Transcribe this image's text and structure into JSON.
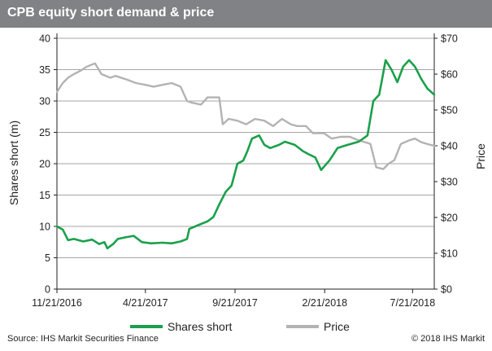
{
  "chart_data": {
    "type": "line",
    "title": "CPB equity short demand & price",
    "ylabel": "Shares short (m)",
    "y2label": "Price",
    "ylim": [
      0,
      40
    ],
    "y2lim": [
      0,
      70
    ],
    "yticks": [
      "0",
      "5",
      "10",
      "15",
      "20",
      "25",
      "30",
      "35",
      "40"
    ],
    "y2ticks": [
      "$0",
      "$10",
      "$20",
      "$30",
      "$40",
      "$50",
      "$60",
      "$70"
    ],
    "xticks": [
      "11/21/2016",
      "4/21/2017",
      "9/21/2017",
      "2/21/2018",
      "7/21/2018"
    ],
    "xlim": [
      "2016-11-21",
      "2018-08-27"
    ],
    "grid": true,
    "legend_position": "bottom",
    "colors": {
      "shares_short": "#1aa04b",
      "price": "#b3b3b3"
    },
    "series": [
      {
        "name": "Shares short",
        "axis": "left",
        "x": [
          "2016-11-21",
          "2016-12-01",
          "2016-12-10",
          "2016-12-20",
          "2017-01-05",
          "2017-01-20",
          "2017-02-01",
          "2017-02-10",
          "2017-02-15",
          "2017-02-25",
          "2017-03-05",
          "2017-03-20",
          "2017-04-01",
          "2017-04-15",
          "2017-05-01",
          "2017-05-20",
          "2017-06-05",
          "2017-06-20",
          "2017-07-01",
          "2017-07-05",
          "2017-07-20",
          "2017-08-05",
          "2017-08-15",
          "2017-08-25",
          "2017-09-05",
          "2017-09-15",
          "2017-09-25",
          "2017-10-05",
          "2017-10-12",
          "2017-10-20",
          "2017-11-01",
          "2017-11-10",
          "2017-11-20",
          "2017-12-05",
          "2017-12-15",
          "2018-01-01",
          "2018-01-15",
          "2018-01-25",
          "2018-02-05",
          "2018-02-15",
          "2018-03-01",
          "2018-03-15",
          "2018-04-01",
          "2018-04-20",
          "2018-05-05",
          "2018-05-15",
          "2018-05-25",
          "2018-06-05",
          "2018-06-15",
          "2018-06-25",
          "2018-07-05",
          "2018-07-15",
          "2018-07-25",
          "2018-08-05",
          "2018-08-15",
          "2018-08-27"
        ],
        "values": [
          10,
          9.5,
          7.8,
          8.0,
          7.6,
          7.9,
          7.2,
          7.5,
          6.5,
          7.2,
          8.0,
          8.3,
          8.5,
          7.5,
          7.3,
          7.4,
          7.3,
          7.6,
          8.0,
          9.6,
          10.2,
          10.8,
          11.5,
          13.5,
          15.5,
          16.5,
          20.0,
          20.5,
          22.0,
          24.0,
          24.5,
          23.0,
          22.5,
          23.0,
          23.5,
          23.0,
          22.0,
          21.5,
          21.0,
          19.0,
          20.5,
          22.5,
          23.0,
          23.5,
          24.5,
          30.0,
          31.0,
          36.5,
          35.0,
          33.0,
          35.5,
          36.5,
          35.5,
          33.5,
          32.0,
          31.0
        ]
      },
      {
        "name": "Price",
        "axis": "right",
        "x": [
          "2016-11-21",
          "2016-12-01",
          "2016-12-10",
          "2016-12-20",
          "2017-01-01",
          "2017-01-10",
          "2017-01-25",
          "2017-02-05",
          "2017-02-20",
          "2017-03-01",
          "2017-03-20",
          "2017-04-05",
          "2017-04-21",
          "2017-05-05",
          "2017-05-20",
          "2017-06-05",
          "2017-06-20",
          "2017-07-01",
          "2017-07-10",
          "2017-07-25",
          "2017-08-05",
          "2017-08-15",
          "2017-08-25",
          "2017-08-31",
          "2017-09-10",
          "2017-09-25",
          "2017-10-10",
          "2017-10-25",
          "2017-11-10",
          "2017-11-25",
          "2017-12-10",
          "2017-12-25",
          "2018-01-05",
          "2018-01-20",
          "2018-02-01",
          "2018-02-20",
          "2018-03-05",
          "2018-03-20",
          "2018-04-05",
          "2018-04-20",
          "2018-05-01",
          "2018-05-10",
          "2018-05-20",
          "2018-06-01",
          "2018-06-10",
          "2018-06-20",
          "2018-07-01",
          "2018-07-15",
          "2018-07-25",
          "2018-08-05",
          "2018-08-15",
          "2018-08-27"
        ],
        "values": [
          55,
          57.5,
          59,
          60,
          61,
          62,
          63,
          60,
          59,
          59.5,
          58.5,
          57.5,
          57,
          56.5,
          57,
          57.5,
          56.5,
          52.5,
          52,
          51.5,
          53.5,
          53.5,
          53.5,
          46,
          47.5,
          47,
          46,
          47.5,
          47,
          45.5,
          47.5,
          46,
          45.5,
          45.5,
          43.5,
          43.5,
          42,
          42.5,
          42.5,
          41.5,
          41,
          40.5,
          34,
          33.5,
          35,
          36,
          40.5,
          41.5,
          42,
          41,
          40.5,
          40
        ]
      }
    ]
  },
  "footer": {
    "source": "Source: IHS Markit Securities Finance",
    "copyright": "© 2018 IHS Markit"
  }
}
